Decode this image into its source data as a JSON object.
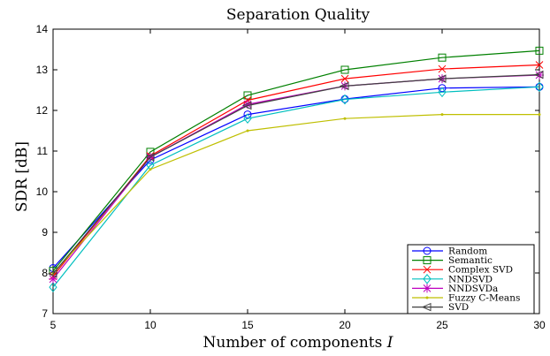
{
  "chart_data": {
    "type": "line",
    "title": "Separation Quality",
    "xlabel_text": "Number of components ",
    "xlabel_var": "I",
    "ylabel": "SDR [dB]",
    "x": [
      5,
      10,
      15,
      20,
      25,
      30
    ],
    "xlim": [
      5,
      30
    ],
    "ylim": [
      7,
      14
    ],
    "xticks": [
      "5",
      "10",
      "15",
      "20",
      "25",
      "30"
    ],
    "yticks": [
      "7",
      "8",
      "9",
      "10",
      "11",
      "12",
      "13",
      "14"
    ],
    "grid": false,
    "legend_position": "bottom-right",
    "series": [
      {
        "name": "Random",
        "color": "#0000ff",
        "marker": "circle",
        "values": [
          8.12,
          10.78,
          11.9,
          12.28,
          12.55,
          12.58
        ]
      },
      {
        "name": "Semantic",
        "color": "#008000",
        "marker": "square",
        "values": [
          8.05,
          10.98,
          12.37,
          13.0,
          13.3,
          13.47
        ]
      },
      {
        "name": "Complex SVD",
        "color": "#ff0000",
        "marker": "x",
        "values": [
          7.92,
          10.88,
          12.25,
          12.78,
          13.02,
          13.12
        ]
      },
      {
        "name": "NNDSVD",
        "color": "#00bfbf",
        "marker": "diamond",
        "values": [
          7.65,
          10.65,
          11.8,
          12.27,
          12.45,
          12.58
        ]
      },
      {
        "name": "NNDSVDa",
        "color": "#bf00bf",
        "marker": "star",
        "values": [
          7.85,
          10.85,
          12.15,
          12.6,
          12.78,
          12.87
        ]
      },
      {
        "name": "Fuzzy C-Means",
        "color": "#bfbf00",
        "marker": "point",
        "values": [
          8.0,
          10.55,
          11.5,
          11.8,
          11.9,
          11.9
        ]
      },
      {
        "name": "SVD",
        "color": "#404040",
        "marker": "triangle-left",
        "values": [
          7.98,
          10.85,
          12.12,
          12.6,
          12.78,
          12.88
        ]
      }
    ]
  }
}
